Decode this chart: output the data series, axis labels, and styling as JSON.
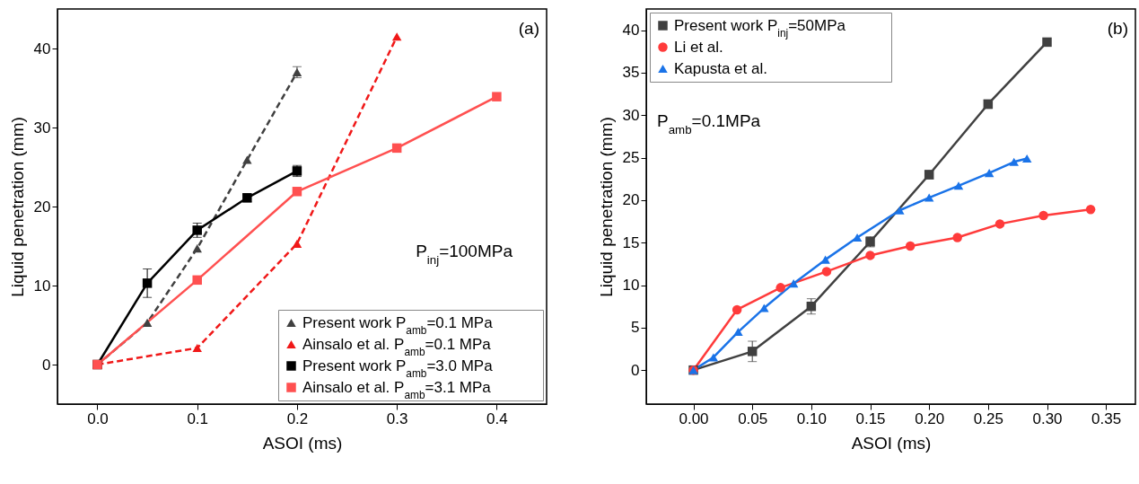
{
  "chart_data": [
    {
      "type": "line",
      "xlabel": "ASOI (ms)",
      "ylabel": "Liquid penetration (mm)",
      "xlim": [
        -0.04,
        0.45
      ],
      "ylim": [
        -5,
        45
      ],
      "xticks": [
        {
          "value": 0,
          "label": "0.0"
        },
        0.1,
        0.2,
        0.3,
        0.4
      ],
      "yticks": [
        0,
        10,
        20,
        30,
        40
      ],
      "legend": "bottom right",
      "grid": false,
      "annotations": [
        "(a)",
        "P$_{inj}$=100MPa"
      ],
      "series": [
        {
          "name": "Present work P$_{amb}$=0.1 MPa",
          "color": "#404040",
          "marker": "triangle",
          "line_style": "dashed",
          "x": [
            0,
            0.05,
            0.1,
            0.15,
            0.2
          ],
          "values": [
            0,
            5.3,
            14.7,
            25.9,
            37.0
          ],
          "errors": [
            null,
            null,
            null,
            null,
            0.7
          ]
        },
        {
          "name": "Ainsalo et al. P$_{amb}$=0.1 MPa",
          "color": "#f01818",
          "marker": "triangle",
          "line_style": "dashed",
          "x": [
            0,
            0.1,
            0.2,
            0.3
          ],
          "values": [
            0,
            2.1,
            15.3,
            41.5
          ]
        },
        {
          "name": "Present work P$_{amb}$=3.0 MPa",
          "color": "#000000",
          "marker": "square",
          "line_style": "solid",
          "x": [
            0,
            0.05,
            0.1,
            0.15,
            0.2
          ],
          "values": [
            0,
            10.3,
            17.0,
            21.1,
            24.5
          ],
          "errors": [
            null,
            1.8,
            0.9,
            0.5,
            0.7
          ]
        },
        {
          "name": "Ainsalo et al. P$_{amb}$=3.1 MPa",
          "color": "#ff5050",
          "marker": "square",
          "line_style": "solid",
          "x": [
            0,
            0.1,
            0.2,
            0.3,
            0.4
          ],
          "values": [
            0,
            10.7,
            21.9,
            27.4,
            33.9
          ]
        }
      ]
    },
    {
      "type": "line",
      "xlabel": "ASOI (ms)",
      "ylabel": "Liquid penetration (mm)",
      "xlim": [
        -0.04,
        0.375
      ],
      "ylim": [
        -4,
        42.5
      ],
      "xticks": [
        {
          "value": 0,
          "label": "0.00"
        },
        {
          "value": 0.05,
          "label": "0.05"
        },
        {
          "value": 0.1,
          "label": "0.10"
        },
        {
          "value": 0.15,
          "label": "0.15"
        },
        {
          "value": 0.2,
          "label": "0.20"
        },
        {
          "value": 0.25,
          "label": "0.25"
        },
        {
          "value": 0.3,
          "label": "0.30"
        },
        {
          "value": 0.35,
          "label": "0.35"
        }
      ],
      "yticks": [
        0,
        5,
        10,
        15,
        20,
        25,
        30,
        35,
        40
      ],
      "legend": "top left",
      "grid": false,
      "annotations": [
        "(b)",
        "P$_{amb}$=0.1MPa"
      ],
      "series": [
        {
          "name": "Present work P$_{inj}$=50MPa",
          "color": "#404040",
          "marker": "square",
          "line_style": "solid",
          "x": [
            0,
            0.05,
            0.1,
            0.15,
            0.2,
            0.25,
            0.3
          ],
          "values": [
            0,
            2.2,
            7.5,
            15.1,
            23.0,
            31.3,
            38.6
          ],
          "errors": [
            null,
            1.2,
            0.9,
            0.6,
            0.5,
            0.5,
            null
          ]
        },
        {
          "name": "Li et al.",
          "color": "#ff3b3b",
          "marker": "circle",
          "line_style": "solid",
          "x": [
            0,
            0.037,
            0.074,
            0.113,
            0.15,
            0.184,
            0.224,
            0.26,
            0.297,
            0.337
          ],
          "values": [
            0,
            7.1,
            9.7,
            11.6,
            13.5,
            14.6,
            15.6,
            17.2,
            18.2,
            18.9
          ]
        },
        {
          "name": "Kapusta et al.",
          "color": "#1a73e8",
          "marker": "triangle",
          "line_style": "solid",
          "x": [
            0,
            0.017,
            0.038,
            0.06,
            0.085,
            0.112,
            0.139,
            0.175,
            0.2,
            0.225,
            0.251,
            0.272,
            0.283
          ],
          "values": [
            0,
            1.5,
            4.5,
            7.3,
            10.2,
            13.0,
            15.6,
            18.8,
            20.3,
            21.7,
            23.2,
            24.5,
            24.9
          ]
        }
      ]
    }
  ]
}
